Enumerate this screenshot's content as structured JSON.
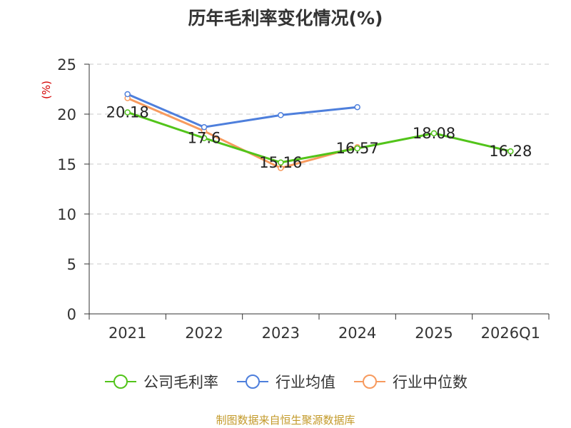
{
  "title": "历年毛利率变化情况(%)",
  "source": "制图数据来自恒生聚源数据库",
  "chart_data": {
    "type": "line",
    "title": "历年毛利率变化情况(%)",
    "ylabel": "(%)",
    "categories": [
      "2021",
      "2022",
      "2023",
      "2024",
      "2025",
      "2026Q1"
    ],
    "ylim": [
      0,
      25
    ],
    "yticks": [
      0,
      5,
      10,
      15,
      20,
      25
    ],
    "grid": true,
    "legend_position": "bottom",
    "series": [
      {
        "name": "公司毛利率",
        "color": "#52c41a",
        "values": [
          20.18,
          17.6,
          15.16,
          16.57,
          18.08,
          16.28
        ],
        "labels": [
          "20.18",
          "17.6",
          "15.16",
          "16.57",
          "18.08",
          "16.28"
        ]
      },
      {
        "name": "行业均值",
        "color": "#4e7fdc",
        "values": [
          22.0,
          18.7,
          19.9,
          20.7,
          null,
          null
        ]
      },
      {
        "name": "行业中位数",
        "color": "#f79a5e",
        "values": [
          21.6,
          18.3,
          14.6,
          16.7,
          null,
          null
        ]
      }
    ]
  }
}
